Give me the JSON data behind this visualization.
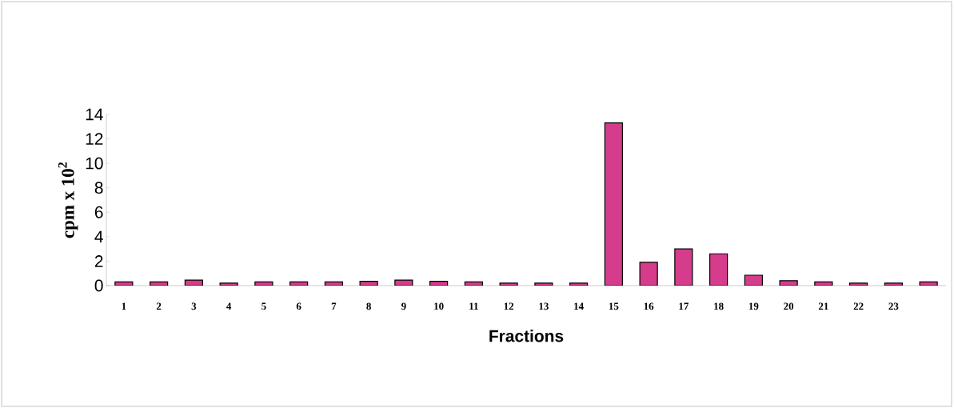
{
  "chart_data": {
    "type": "bar",
    "xlabel": "Fractions",
    "ylabel": "cpm x 10$^{2}$",
    "categories": [
      "1",
      "2",
      "3",
      "4",
      "5",
      "6",
      "7",
      "8",
      "9",
      "10",
      "11",
      "12",
      "13",
      "14",
      "15",
      "16",
      "17",
      "18",
      "19",
      "20",
      "21",
      "22",
      "23",
      null
    ],
    "values": [
      0.3,
      0.3,
      0.45,
      0.2,
      0.3,
      0.3,
      0.3,
      0.35,
      0.45,
      0.35,
      0.3,
      0.2,
      0.2,
      0.2,
      13.3,
      1.9,
      3.0,
      2.6,
      0.85,
      0.4,
      0.3,
      0.2,
      0.2,
      0.3
    ],
    "color": "#d63c8c",
    "ylim": [
      0,
      14
    ],
    "yticks": [
      0,
      2,
      4,
      6,
      8,
      10,
      12,
      14
    ],
    "grid": false
  }
}
